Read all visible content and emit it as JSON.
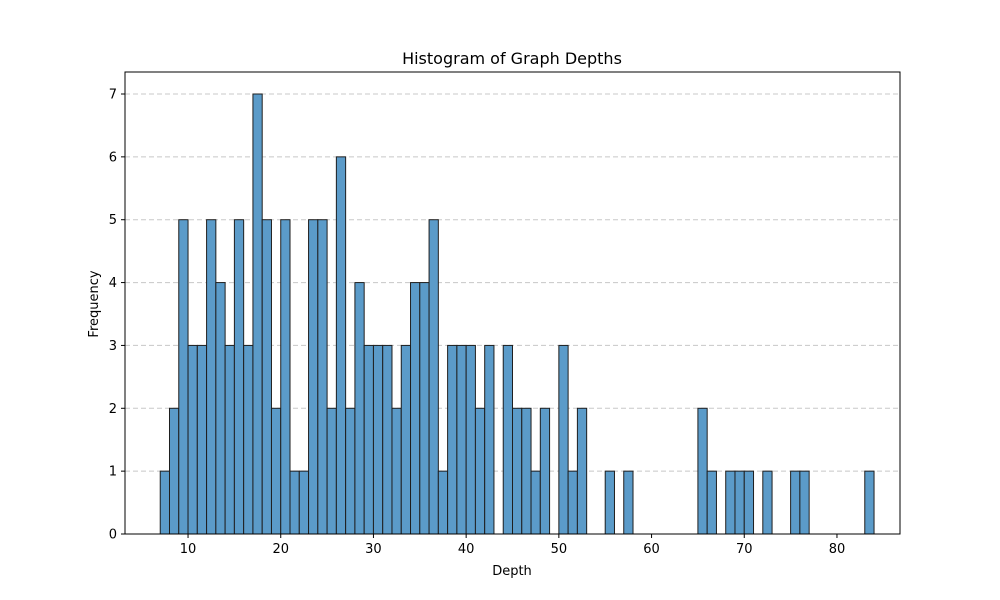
{
  "chart_data": {
    "type": "bar",
    "title": "Histogram of Graph Depths",
    "xlabel": "Depth",
    "ylabel": "Frequency",
    "xlim": [
      3.2,
      86.8
    ],
    "ylim": [
      0,
      7.35
    ],
    "xticks": [
      10,
      20,
      30,
      40,
      50,
      60,
      70,
      80
    ],
    "yticks": [
      0,
      1,
      2,
      3,
      4,
      5,
      6,
      7
    ],
    "grid": "y-dashed",
    "bar_color": "#5b9bc9",
    "edge_color": "#1f1f1f",
    "grid_color": "#c8c8c8",
    "bin_start": 7,
    "bin_width": 1,
    "values": [
      1,
      2,
      5,
      3,
      3,
      5,
      4,
      3,
      5,
      3,
      7,
      5,
      2,
      5,
      1,
      1,
      5,
      5,
      2,
      6,
      2,
      4,
      3,
      3,
      3,
      2,
      3,
      4,
      4,
      5,
      1,
      3,
      3,
      3,
      2,
      3,
      0,
      3,
      2,
      2,
      1,
      2,
      0,
      3,
      1,
      2,
      0,
      0,
      1,
      0,
      1,
      0,
      0,
      0,
      0,
      0,
      0,
      0,
      2,
      1,
      0,
      1,
      1,
      1,
      0,
      1,
      0,
      0,
      1,
      1,
      0,
      0,
      0,
      0,
      0,
      0,
      1
    ]
  }
}
